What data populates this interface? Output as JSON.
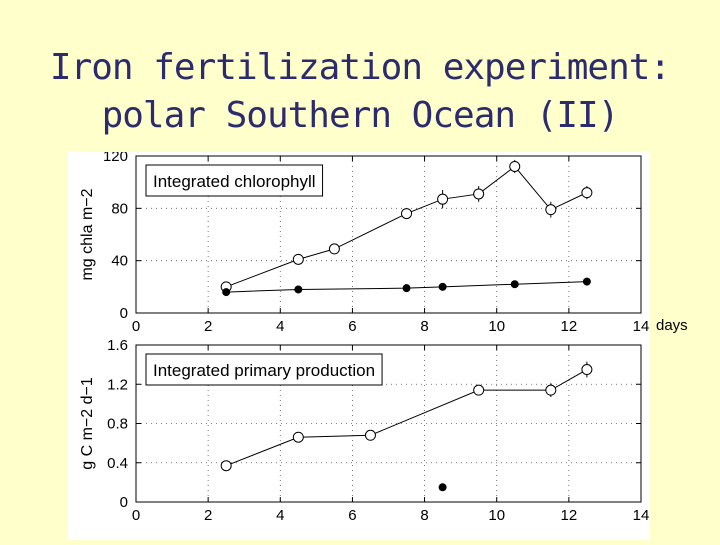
{
  "slide": {
    "title_line1": "Iron fertilization experiment:",
    "title_line2": "polar Southern Ocean (II)",
    "x_unit_label": "days"
  },
  "colors": {
    "background": "#ffffcc",
    "title": "#2b2b6e",
    "plot": "#ffffff"
  },
  "chart_data": [
    {
      "type": "line",
      "title": "Integrated chlorophyll",
      "ylabel": "mg chla m−2",
      "xlabel": "days",
      "xlim": [
        0,
        14
      ],
      "ylim": [
        0,
        120
      ],
      "x_ticks": [
        0,
        2,
        4,
        6,
        8,
        10,
        12,
        14
      ],
      "y_ticks": [
        0,
        40,
        80,
        120
      ],
      "grid": true,
      "legend": "top-left",
      "series": [
        {
          "marker": "open-circle",
          "points": [
            [
              2.5,
              20
            ],
            [
              4.5,
              41
            ],
            [
              5.5,
              49
            ],
            [
              7.5,
              76
            ],
            [
              8.5,
              87
            ],
            [
              9.5,
              91
            ],
            [
              10.5,
              112
            ],
            [
              11.5,
              79
            ],
            [
              12.5,
              92
            ]
          ],
          "error": [
            0,
            0,
            0,
            0,
            7,
            6,
            5,
            6,
            5
          ]
        },
        {
          "marker": "filled-circle",
          "points": [
            [
              2.5,
              16
            ],
            [
              4.5,
              18
            ],
            [
              7.5,
              19
            ],
            [
              8.5,
              20
            ],
            [
              10.5,
              22
            ],
            [
              12.5,
              24
            ]
          ]
        }
      ]
    },
    {
      "type": "line",
      "title": "Integrated primary production",
      "ylabel": "g C m−2 d−1",
      "xlabel": "days",
      "xlim": [
        0,
        14
      ],
      "ylim": [
        0,
        1.6
      ],
      "x_ticks": [
        0,
        2,
        4,
        6,
        8,
        10,
        12,
        14
      ],
      "y_ticks": [
        0,
        0.4,
        0.8,
        1.2,
        1.6
      ],
      "grid": true,
      "legend": "top-left",
      "series": [
        {
          "marker": "open-circle",
          "points": [
            [
              2.5,
              0.37
            ],
            [
              4.5,
              0.66
            ],
            [
              6.5,
              0.68
            ],
            [
              9.5,
              1.14
            ],
            [
              11.5,
              1.14
            ],
            [
              12.5,
              1.35
            ]
          ],
          "error": [
            0,
            0,
            0.04,
            0.05,
            0.07,
            0.08
          ]
        },
        {
          "marker": "filled-circle",
          "points": [
            [
              8.5,
              0.15
            ]
          ]
        }
      ]
    }
  ]
}
